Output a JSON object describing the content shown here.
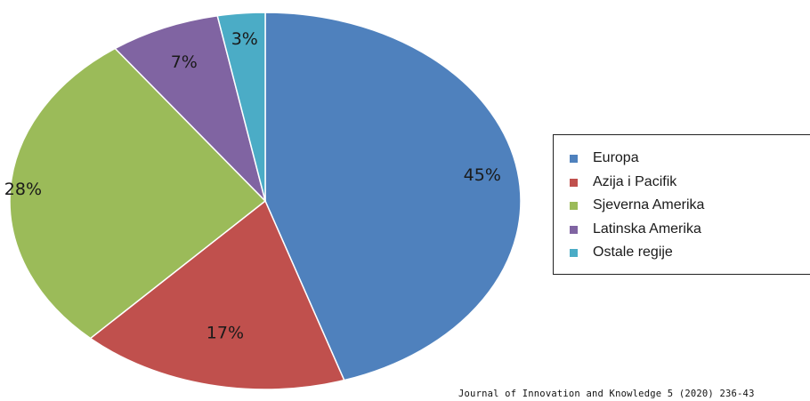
{
  "chart_data": {
    "type": "pie",
    "categories": [
      "Europa",
      "Azija i Pacifik",
      "Sjeverna Amerika",
      "Latinska Amerika",
      "Ostale regije"
    ],
    "values": [
      45,
      17,
      28,
      7,
      3
    ],
    "labels": [
      "45%",
      "17%",
      "28%",
      "7%",
      "3%"
    ],
    "colors": [
      "#4f81bd",
      "#c0504d",
      "#9bbb59",
      "#8064a2",
      "#4bacc6"
    ],
    "legend_position": "right"
  },
  "legend": {
    "items": [
      {
        "label": "Europa",
        "color": "#4f81bd"
      },
      {
        "label": "Azija i Pacifik",
        "color": "#c0504d"
      },
      {
        "label": "Sjeverna Amerika",
        "color": "#9bbb59"
      },
      {
        "label": "Latinska Amerika",
        "color": "#8064a2"
      },
      {
        "label": "Ostale regije",
        "color": "#4bacc6"
      }
    ]
  },
  "source": "Journal of Innovation and Knowledge 5 (2020) 236-43"
}
